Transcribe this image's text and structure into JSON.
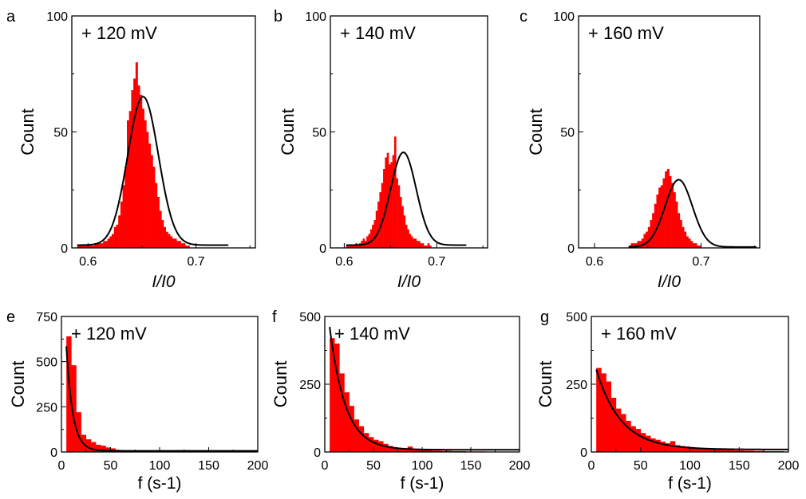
{
  "chart_data": [
    {
      "panel_letter": "a",
      "type": "bar",
      "annotation": "+ 120 mV",
      "xlabel": "I/I0",
      "ylabel": "Count",
      "xlim": [
        0.585,
        0.755
      ],
      "ylim": [
        0,
        100
      ],
      "xticks": [
        0.6,
        0.7
      ],
      "xtick_labels": [
        "0.6",
        "0.7"
      ],
      "yticks": [
        0,
        50,
        100
      ],
      "ytick_labels": [
        "0",
        "50",
        "100"
      ],
      "bin_width": 0.002,
      "bin_start": 0.59,
      "values": [
        1,
        1,
        1,
        1,
        1,
        1,
        1,
        1,
        2,
        2,
        2,
        2,
        3,
        3,
        4,
        5,
        6,
        9,
        10,
        14,
        20,
        27,
        35,
        55,
        59,
        68,
        73,
        80,
        70,
        66,
        60,
        55,
        50,
        45,
        40,
        35,
        28,
        22,
        16,
        12,
        9,
        7,
        6,
        5,
        4,
        4,
        3,
        3,
        2,
        2,
        1,
        1
      ],
      "fit": {
        "model": "gaussian",
        "center": 0.651,
        "sigma": 0.0142,
        "amplitude": 64,
        "baseline": 1.2,
        "x_range": [
          0.59,
          0.73
        ]
      },
      "bar_color": "#ff0000",
      "fit_color": "#000000"
    },
    {
      "panel_letter": "b",
      "type": "bar",
      "annotation": "+ 140 mV",
      "xlabel": "I/I0",
      "ylabel": "Count",
      "xlim": [
        0.585,
        0.755
      ],
      "ylim": [
        0,
        100
      ],
      "xticks": [
        0.6,
        0.7
      ],
      "xtick_labels": [
        "0.6",
        "0.7"
      ],
      "yticks": [
        0,
        50,
        100
      ],
      "ytick_labels": [
        "0",
        "50",
        "100"
      ],
      "bin_width": 0.002,
      "bin_start": 0.602,
      "values": [
        1,
        1,
        1,
        1,
        1,
        2,
        1,
        2,
        3,
        4,
        3,
        5,
        6,
        8,
        10,
        12,
        16,
        20,
        24,
        28,
        34,
        39,
        41,
        36,
        37,
        40,
        48,
        30,
        27,
        22,
        18,
        14,
        10,
        8,
        6,
        5,
        4,
        4,
        3,
        3,
        2,
        2,
        1,
        1,
        2,
        1
      ],
      "fit": {
        "model": "gaussian",
        "center": 0.664,
        "sigma": 0.0138,
        "amplitude": 40,
        "baseline": 1.2,
        "x_range": [
          0.602,
          0.732
        ]
      },
      "bar_color": "#ff0000",
      "fit_color": "#000000"
    },
    {
      "panel_letter": "c",
      "type": "bar",
      "annotation": "+ 160 mV",
      "xlabel": "I/I0",
      "ylabel": "Count",
      "xlim": [
        0.585,
        0.755
      ],
      "ylim": [
        0,
        100
      ],
      "xticks": [
        0.6,
        0.7
      ],
      "xtick_labels": [
        "0.6",
        "0.7"
      ],
      "yticks": [
        0,
        50,
        100
      ],
      "ytick_labels": [
        "0",
        "50",
        "100"
      ],
      "bin_width": 0.002,
      "bin_start": 0.632,
      "values": [
        1,
        2,
        2,
        2,
        3,
        3,
        4,
        6,
        7,
        9,
        12,
        15,
        19,
        23,
        26,
        27,
        30,
        33,
        34,
        31,
        28,
        24,
        20,
        15,
        12,
        9,
        7,
        5,
        4,
        3,
        2,
        2,
        1,
        1
      ],
      "fit": {
        "model": "gaussian",
        "center": 0.679,
        "sigma": 0.0128,
        "amplitude": 29,
        "baseline": 0.4,
        "x_range": [
          0.632,
          0.752
        ]
      },
      "bar_color": "#ff0000",
      "fit_color": "#000000"
    },
    {
      "panel_letter": "e",
      "type": "bar",
      "annotation": "+ 120 mV",
      "xlabel": "f (s-1)",
      "ylabel": "Count",
      "xlim": [
        0,
        200
      ],
      "ylim": [
        0,
        750
      ],
      "xticks": [
        0,
        50,
        100,
        150,
        200
      ],
      "xtick_labels": [
        "0",
        "50",
        "100",
        "150",
        "200"
      ],
      "yticks": [
        0,
        250,
        500,
        750
      ],
      "ytick_labels": [
        "0",
        "250",
        "500",
        "750"
      ],
      "bin_width": 5,
      "bin_start": 5,
      "values": [
        640,
        480,
        220,
        95,
        70,
        55,
        40,
        35,
        25,
        20,
        12,
        10,
        7,
        6,
        4,
        3,
        2,
        2,
        1,
        1,
        1,
        1,
        1,
        1,
        0,
        0,
        0,
        0,
        0,
        0,
        0,
        0,
        0,
        0,
        0,
        0,
        0,
        0
      ],
      "fit": {
        "model": "exponential",
        "amplitude": 1250,
        "decay": 6.5,
        "baseline": 6,
        "x_range": [
          5,
          200
        ]
      },
      "bar_color": "#ff0000",
      "fit_color": "#000000"
    },
    {
      "panel_letter": "f",
      "type": "bar",
      "annotation": "+ 140 mV",
      "xlabel": "f (s-1)",
      "ylabel": "Count",
      "xlim": [
        0,
        200
      ],
      "ylim": [
        0,
        500
      ],
      "xticks": [
        0,
        50,
        100,
        150,
        200
      ],
      "xtick_labels": [
        "0",
        "50",
        "100",
        "150",
        "200"
      ],
      "yticks": [
        0,
        250,
        500
      ],
      "ytick_labels": [
        "0",
        "250",
        "500"
      ],
      "bin_width": 5,
      "bin_start": 5,
      "values": [
        420,
        400,
        290,
        220,
        170,
        120,
        95,
        70,
        55,
        45,
        40,
        30,
        22,
        18,
        15,
        12,
        20,
        10,
        8,
        9,
        6,
        5,
        5,
        4,
        4,
        3,
        3,
        3,
        2,
        2,
        2,
        2,
        1,
        1,
        1,
        1,
        1,
        1
      ],
      "fit": {
        "model": "exponential",
        "amplitude": 620,
        "decay": 16,
        "baseline": 8,
        "x_range": [
          5,
          200
        ]
      },
      "bar_color": "#ff0000",
      "fit_color": "#000000"
    },
    {
      "panel_letter": "g",
      "type": "bar",
      "annotation": "+ 160 mV",
      "xlabel": "f (s-1)",
      "ylabel": "Count",
      "xlim": [
        0,
        200
      ],
      "ylim": [
        0,
        500
      ],
      "xticks": [
        0,
        50,
        100,
        150,
        200
      ],
      "xtick_labels": [
        "0",
        "50",
        "100",
        "150",
        "200"
      ],
      "yticks": [
        0,
        250,
        500
      ],
      "ytick_labels": [
        "0",
        "250",
        "500"
      ],
      "bin_width": 5,
      "bin_start": 5,
      "values": [
        310,
        290,
        260,
        200,
        160,
        140,
        115,
        95,
        85,
        70,
        60,
        50,
        45,
        38,
        32,
        40,
        25,
        22,
        20,
        18,
        16,
        14,
        12,
        10,
        10,
        9,
        8,
        7,
        6,
        6,
        5,
        5,
        4,
        4,
        3,
        3,
        3,
        3
      ],
      "fit": {
        "model": "exponential",
        "amplitude": 360,
        "decay": 25,
        "baseline": 9,
        "x_range": [
          5,
          200
        ]
      },
      "bar_color": "#ff0000",
      "fit_color": "#000000"
    }
  ]
}
